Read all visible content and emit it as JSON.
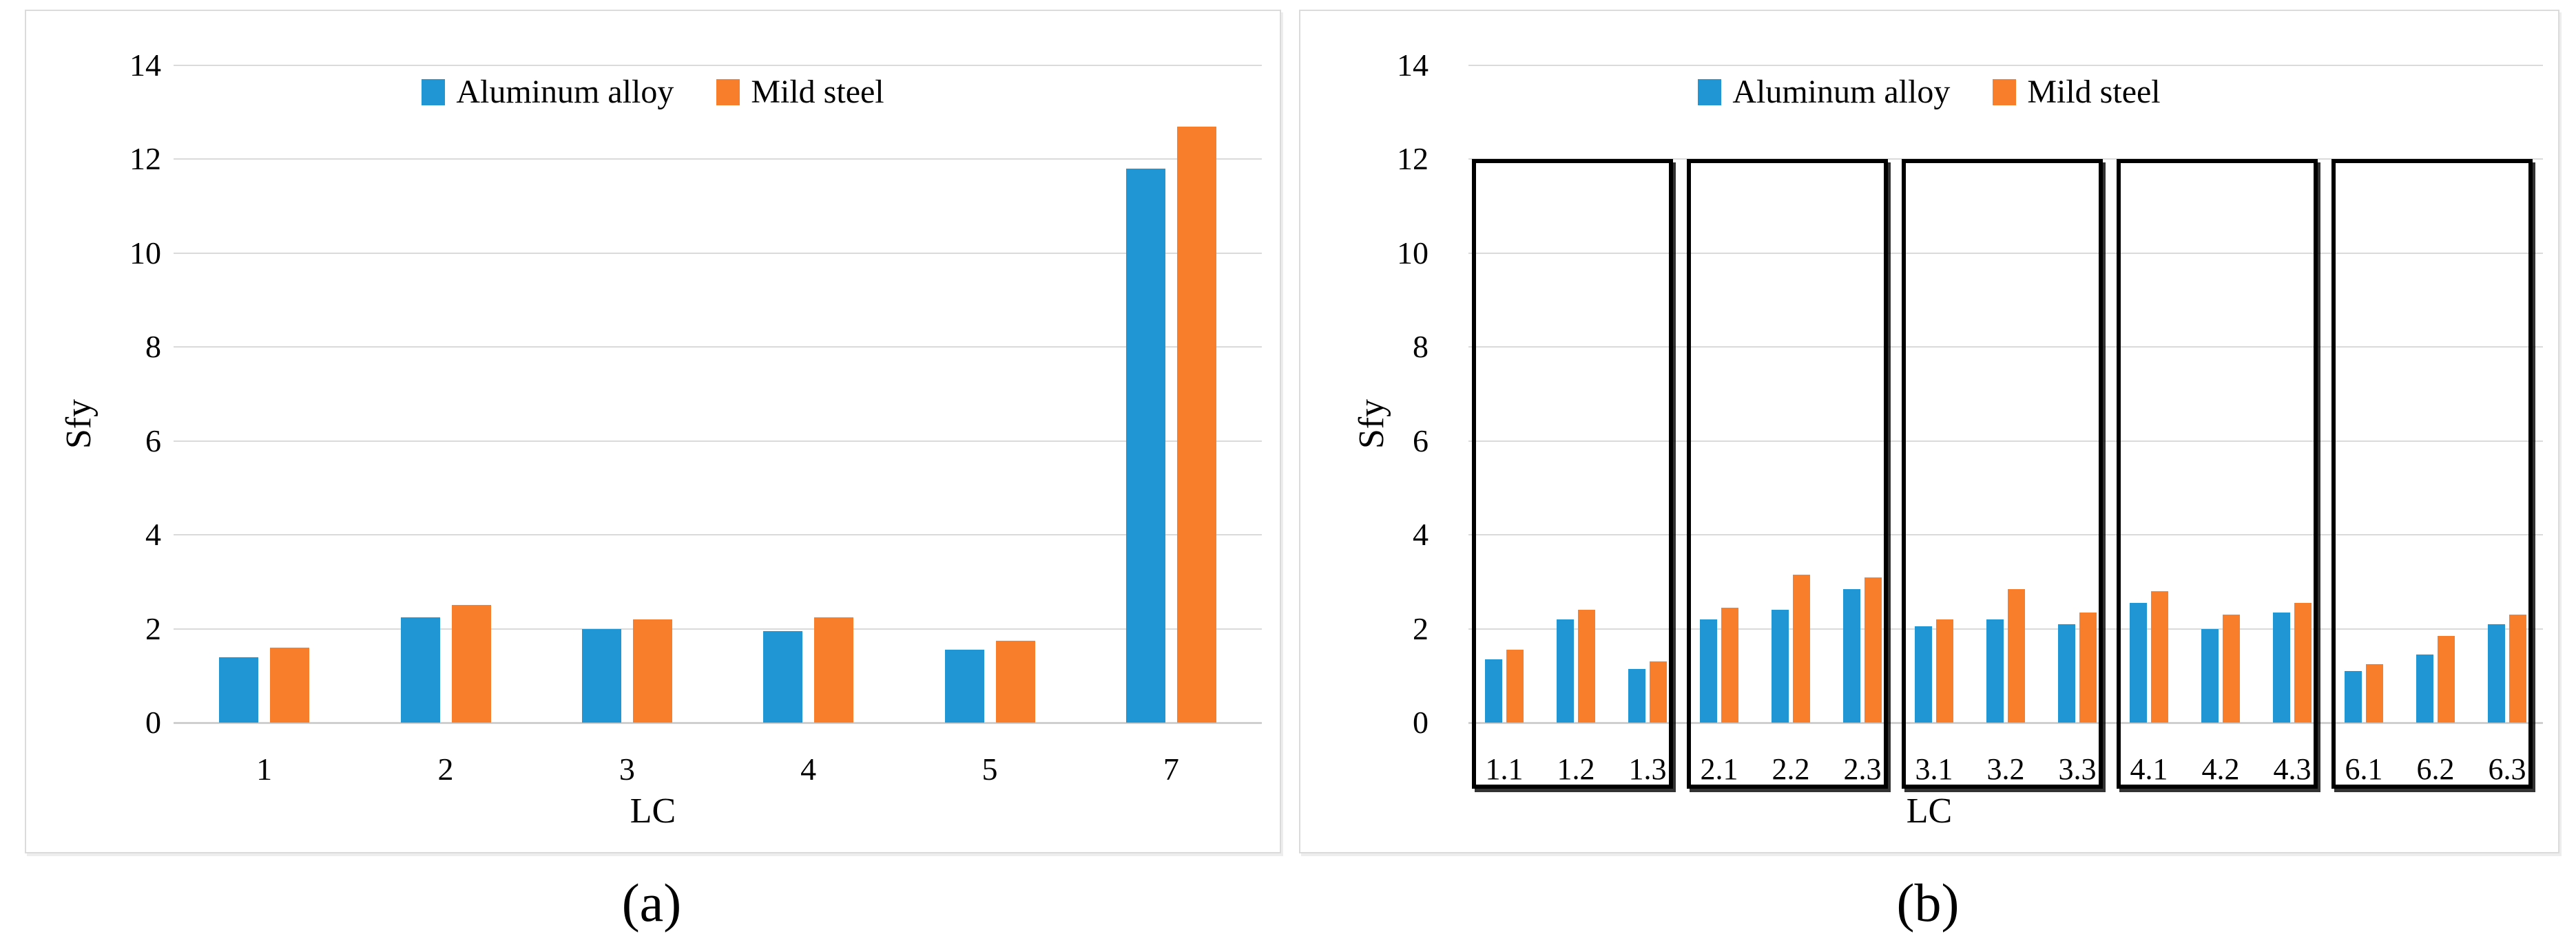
{
  "figure": {
    "background": "#ffffff",
    "captions": {
      "a": "(a)",
      "b": "(b)"
    }
  },
  "colors": {
    "aluminum": "#2196D5",
    "mild_steel": "#F97E2B",
    "gridline": "#DADADA",
    "baseline": "#CFCFCF",
    "box_border": "#000000",
    "panel_border": "#DBDBDB",
    "text": "#000000"
  },
  "chart_data": [
    {
      "id": "a",
      "type": "bar",
      "caption": "(a)",
      "xlabel": "LC",
      "ylabel": "Sfy",
      "ylim": [
        0,
        14
      ],
      "yticks": [
        0,
        2,
        4,
        6,
        8,
        10,
        12,
        14
      ],
      "grid": true,
      "legend_position": "top-center",
      "categories": [
        "1",
        "2",
        "3",
        "4",
        "5",
        "7"
      ],
      "series": [
        {
          "name": "Aluminum alloy",
          "color": "#2196D5",
          "values": [
            1.4,
            2.25,
            2.0,
            1.95,
            1.55,
            11.8
          ]
        },
        {
          "name": "Mild steel",
          "color": "#F97E2B",
          "values": [
            1.6,
            2.5,
            2.2,
            2.25,
            1.75,
            12.7
          ]
        }
      ]
    },
    {
      "id": "b",
      "type": "bar",
      "caption": "(b)",
      "xlabel": "LC",
      "ylabel": "Sfy",
      "ylim": [
        0,
        14
      ],
      "yticks": [
        0,
        2,
        4,
        6,
        8,
        10,
        12,
        14
      ],
      "grid": true,
      "legend_position": "top-center",
      "categories": [
        "1.1",
        "1.2",
        "1.3",
        "2.1",
        "2.2",
        "2.3",
        "3.1",
        "3.2",
        "3.3",
        "4.1",
        "4.2",
        "4.3",
        "6.1",
        "6.2",
        "6.3"
      ],
      "series": [
        {
          "name": "Aluminum alloy",
          "color": "#2196D5",
          "values": [
            1.35,
            2.2,
            1.15,
            2.2,
            2.4,
            2.85,
            2.05,
            2.2,
            2.1,
            2.55,
            2.0,
            2.35,
            1.1,
            1.45,
            2.1
          ]
        },
        {
          "name": "Mild steel",
          "color": "#F97E2B",
          "values": [
            1.55,
            2.4,
            1.3,
            2.45,
            3.15,
            3.1,
            2.2,
            2.85,
            2.35,
            2.8,
            2.3,
            2.55,
            1.25,
            1.85,
            2.3
          ]
        }
      ],
      "group_boxes": [
        [
          0,
          2
        ],
        [
          3,
          5
        ],
        [
          6,
          8
        ],
        [
          9,
          11
        ],
        [
          12,
          14
        ]
      ],
      "box_top_value": 12
    }
  ]
}
